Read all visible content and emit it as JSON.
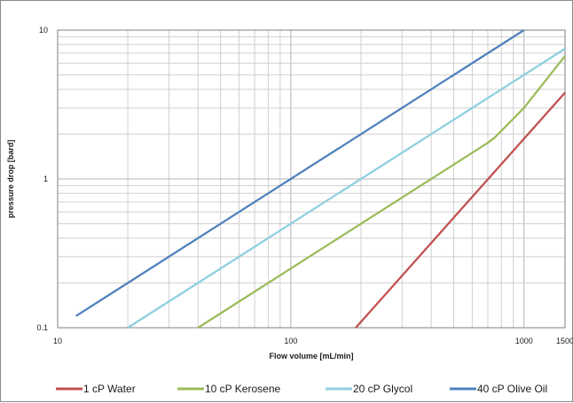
{
  "chart_data": {
    "type": "line",
    "title": "",
    "xlabel": "Flow volume [mL/min]",
    "ylabel": "pressure drop [bard]",
    "x_scale": "log",
    "y_scale": "log",
    "xlim": [
      10,
      1500
    ],
    "ylim": [
      0.1,
      10
    ],
    "x_ticks": [
      "10",
      "100",
      "1000",
      "1500"
    ],
    "y_ticks": [
      "0.1",
      "1",
      "10"
    ],
    "grid": true,
    "legend_position": "bottom",
    "series": [
      {
        "name": "1 cP Water",
        "color": "#c0504d",
        "x": [
          190,
          1500
        ],
        "y": [
          0.1,
          3.8
        ]
      },
      {
        "name": "10 cP Kerosene",
        "color": "#9bbb59",
        "x": [
          40,
          700,
          750,
          1000,
          1500
        ],
        "y": [
          0.1,
          1.75,
          1.9,
          3.0,
          6.7
        ]
      },
      {
        "name": "20 cP Glycol",
        "color": "#8fcfdf",
        "x": [
          20,
          1500
        ],
        "y": [
          0.1,
          7.5
        ]
      },
      {
        "name": "40 cP Olive Oil",
        "color": "#4f81bd",
        "x": [
          12,
          1000
        ],
        "y": [
          0.12,
          10
        ]
      }
    ]
  }
}
